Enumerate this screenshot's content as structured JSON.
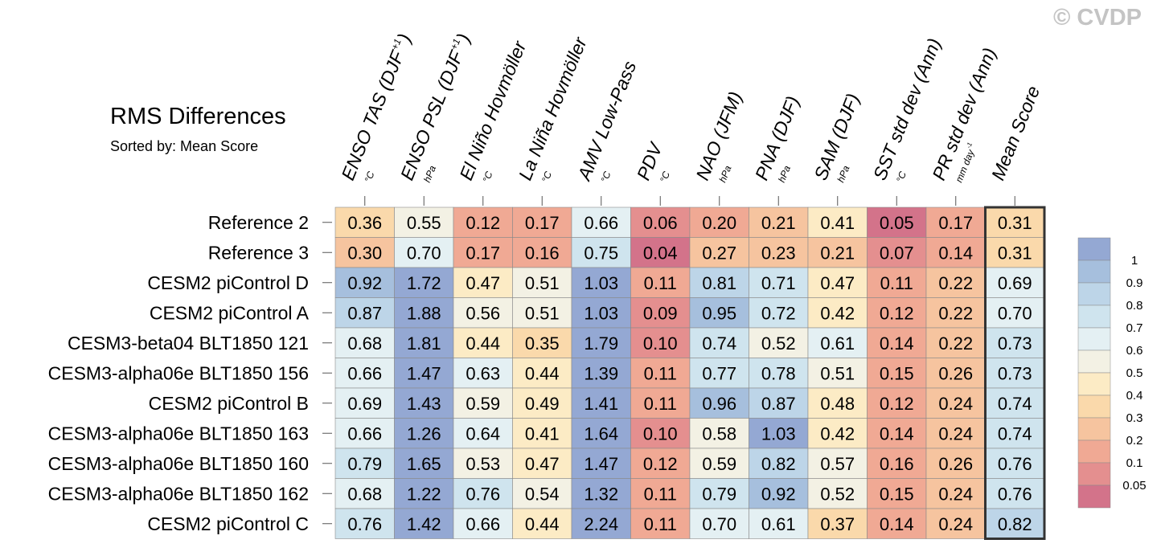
{
  "watermark": "© CVDP",
  "chart_data": {
    "type": "heatmap",
    "title": "RMS Differences",
    "subtitle": "Sorted by: Mean Score",
    "columns": [
      {
        "label": "ENSO TAS (DJF+1)",
        "main": "ENSO TAS (DJF",
        "sup": "+1",
        "tail": ")",
        "unit": "°C"
      },
      {
        "label": "ENSO PSL (DJF+1)",
        "main": "ENSO PSL (DJF",
        "sup": "+1",
        "tail": ")",
        "unit": "hPa"
      },
      {
        "label": "El Niño Hovmöller",
        "main": "El Niño Hovmöller",
        "unit": "°C"
      },
      {
        "label": "La Niña Hovmöller",
        "main": "La Niña Hovmöller",
        "unit": "°C"
      },
      {
        "label": "AMV Low-Pass",
        "main": "AMV Low-Pass",
        "unit": "°C"
      },
      {
        "label": "PDV",
        "main": "PDV",
        "unit": "°C"
      },
      {
        "label": "NAO (JFM)",
        "main": "NAO (JFM)",
        "unit": "hPa"
      },
      {
        "label": "PNA (DJF)",
        "main": "PNA (DJF)",
        "unit": "hPa"
      },
      {
        "label": "SAM (DJF)",
        "main": "SAM (DJF)",
        "unit": "hPa"
      },
      {
        "label": "SST std dev (Ann)",
        "main": "SST std dev (Ann)",
        "unit": "°C"
      },
      {
        "label": "PR std dev (Ann)",
        "main": "PR std dev (Ann)",
        "unit": "mm day",
        "unit_sup": "-1"
      },
      {
        "label": "Mean Score",
        "main": "Mean Score",
        "unit": ""
      }
    ],
    "rows": [
      "Reference 2",
      "Reference 3",
      "CESM2 piControl D",
      "CESM2 piControl A",
      "CESM3-beta04 BLT1850 121",
      "CESM3-alpha06e BLT1850 156",
      "CESM2 piControl B",
      "CESM3-alpha06e BLT1850 163",
      "CESM3-alpha06e BLT1850 160",
      "CESM3-alpha06e BLT1850 162",
      "CESM2 piControl C"
    ],
    "values": [
      [
        "0.36",
        "0.55",
        "0.12",
        "0.17",
        "0.66",
        "0.06",
        "0.20",
        "0.21",
        "0.41",
        "0.05",
        "0.17",
        "0.31"
      ],
      [
        "0.30",
        "0.70",
        "0.17",
        "0.16",
        "0.75",
        "0.04",
        "0.27",
        "0.23",
        "0.21",
        "0.07",
        "0.14",
        "0.31"
      ],
      [
        "0.92",
        "1.72",
        "0.47",
        "0.51",
        "1.03",
        "0.11",
        "0.81",
        "0.71",
        "0.47",
        "0.11",
        "0.22",
        "0.69"
      ],
      [
        "0.87",
        "1.88",
        "0.56",
        "0.51",
        "1.03",
        "0.09",
        "0.95",
        "0.72",
        "0.42",
        "0.12",
        "0.22",
        "0.70"
      ],
      [
        "0.68",
        "1.81",
        "0.44",
        "0.35",
        "1.79",
        "0.10",
        "0.74",
        "0.52",
        "0.61",
        "0.14",
        "0.22",
        "0.73"
      ],
      [
        "0.66",
        "1.47",
        "0.63",
        "0.44",
        "1.39",
        "0.11",
        "0.77",
        "0.78",
        "0.51",
        "0.15",
        "0.26",
        "0.73"
      ],
      [
        "0.69",
        "1.43",
        "0.59",
        "0.49",
        "1.41",
        "0.11",
        "0.96",
        "0.87",
        "0.48",
        "0.12",
        "0.24",
        "0.74"
      ],
      [
        "0.66",
        "1.26",
        "0.64",
        "0.41",
        "1.64",
        "0.10",
        "0.58",
        "1.03",
        "0.42",
        "0.14",
        "0.24",
        "0.74"
      ],
      [
        "0.79",
        "1.65",
        "0.53",
        "0.47",
        "1.47",
        "0.12",
        "0.59",
        "0.82",
        "0.57",
        "0.16",
        "0.26",
        "0.76"
      ],
      [
        "0.68",
        "1.22",
        "0.76",
        "0.54",
        "1.32",
        "0.11",
        "0.79",
        "0.92",
        "0.52",
        "0.15",
        "0.24",
        "0.76"
      ],
      [
        "0.76",
        "1.42",
        "0.66",
        "0.44",
        "2.24",
        "0.11",
        "0.70",
        "0.61",
        "0.37",
        "0.14",
        "0.24",
        "0.82"
      ]
    ],
    "colorbar": {
      "labels": [
        "1",
        "0.9",
        "0.8",
        "0.7",
        "0.6",
        "0.5",
        "0.4",
        "0.3",
        "0.2",
        "0.1",
        "0.05"
      ],
      "bins": [
        {
          "max": 0.05,
          "color": "#d3738a"
        },
        {
          "max": 0.1,
          "color": "#e48f8f"
        },
        {
          "max": 0.2,
          "color": "#f0a994"
        },
        {
          "max": 0.3,
          "color": "#f6c49f"
        },
        {
          "max": 0.4,
          "color": "#fad9ab"
        },
        {
          "max": 0.5,
          "color": "#fcebc5"
        },
        {
          "max": 0.6,
          "color": "#f3f1e4"
        },
        {
          "max": 0.7,
          "color": "#e4f0f3"
        },
        {
          "max": 0.8,
          "color": "#cfe4ee"
        },
        {
          "max": 0.9,
          "color": "#bdd5e8"
        },
        {
          "max": 1.0,
          "color": "#a6bfdd"
        },
        {
          "max": 99,
          "color": "#94a8d3"
        }
      ]
    }
  }
}
